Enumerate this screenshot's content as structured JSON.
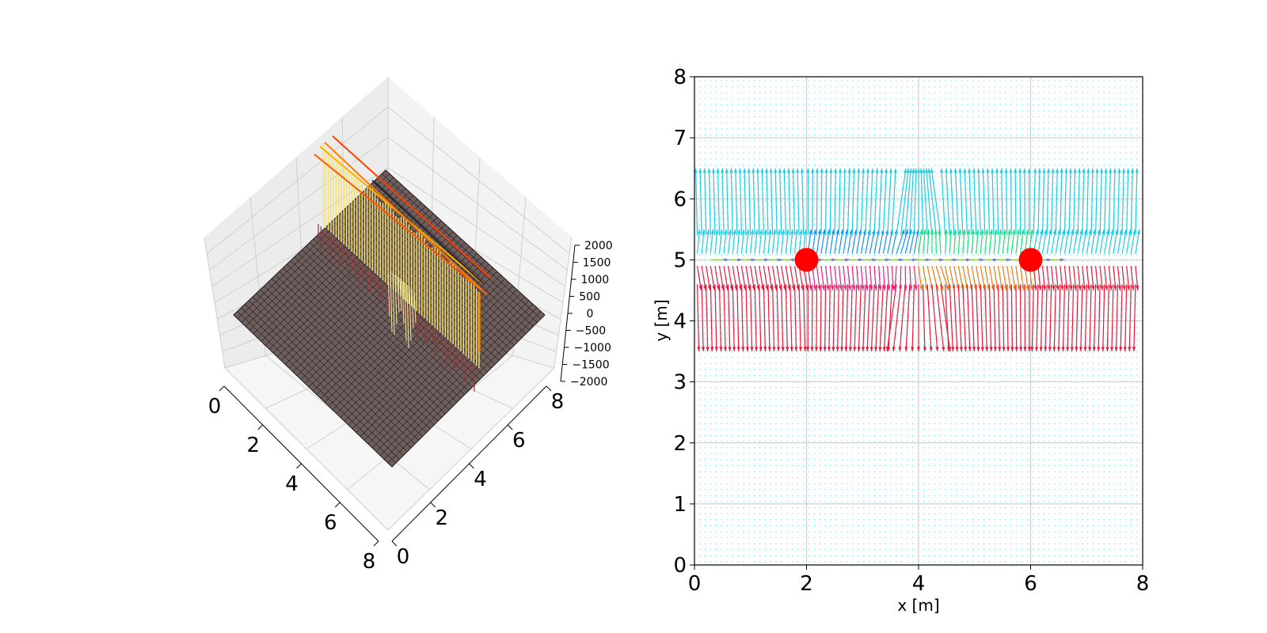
{
  "chart_data": [
    {
      "type": "surface3d",
      "xticks": [
        "0",
        "2",
        "4",
        "6",
        "8"
      ],
      "yticks": [
        "0",
        "2",
        "4",
        "6",
        "8"
      ],
      "zticks": [
        "2000",
        "1500",
        "1000",
        "500",
        "0",
        "−500",
        "−1000",
        "−1500",
        "−2000"
      ],
      "zlim": [
        -2000,
        2000
      ],
      "xlim": [
        0,
        8
      ],
      "ylim": [
        0,
        8
      ],
      "colors": {
        "surface": "#6e5e5e",
        "wire": "#222222",
        "ridge": "#f7e26b",
        "ridge_edge": "#ff7a00",
        "drop": "#8b3a3a"
      }
    },
    {
      "type": "quiver",
      "xlabel": "x [m]",
      "ylabel": "y [m]",
      "xticks": [
        "0",
        "2",
        "4",
        "6",
        "8"
      ],
      "yticks": [
        "0",
        "1",
        "2",
        "3",
        "4",
        "5",
        "6",
        "7",
        "8"
      ],
      "xlim": [
        0,
        8
      ],
      "ylim": [
        0,
        8
      ],
      "grid": true,
      "charges": [
        {
          "x": 2,
          "y": 5,
          "color": "#ff0000"
        },
        {
          "x": 6,
          "y": 5,
          "color": "#ff0000"
        }
      ],
      "bands": [
        {
          "name": "upper",
          "y0": 5.1,
          "y1": 6.5,
          "color_left": "#1ecbe1",
          "color_mid": "#1a8fe8",
          "color_right": "#18e0d0",
          "accent": "#19e07a"
        },
        {
          "name": "lower",
          "y0": 3.5,
          "y1": 4.9,
          "color_left": "#e8183a",
          "color_mid": "#ee1a7e",
          "color_right": "#ee3a18",
          "accent": "#f07a10"
        }
      ],
      "background_arrow_color": "#00e6e6"
    }
  ]
}
